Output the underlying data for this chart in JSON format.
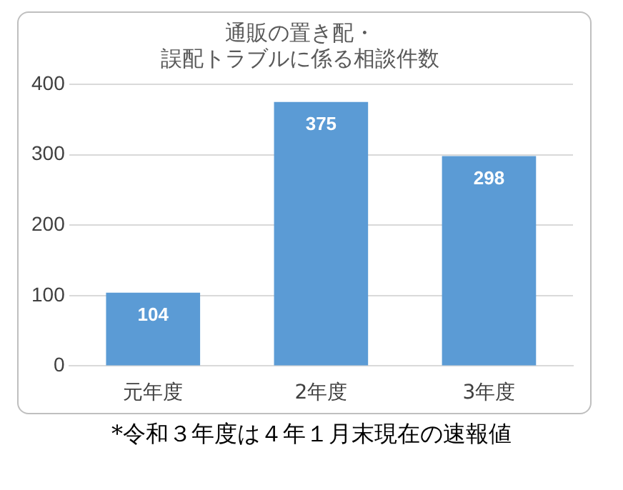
{
  "chart_data": {
    "type": "bar",
    "title": "通販の置き配・誤配トラブルに係る相談件数",
    "categories": [
      "元年度",
      "2年度",
      "3年度"
    ],
    "values": [
      104,
      375,
      298
    ],
    "color": "#5b9bd5",
    "ylim": [
      0,
      400
    ],
    "yticks": [
      0,
      100,
      200,
      300,
      400
    ],
    "grid": "y",
    "data_labels": true,
    "annotations": [
      "*令和３年度は４年１月末現在の速報値"
    ]
  }
}
